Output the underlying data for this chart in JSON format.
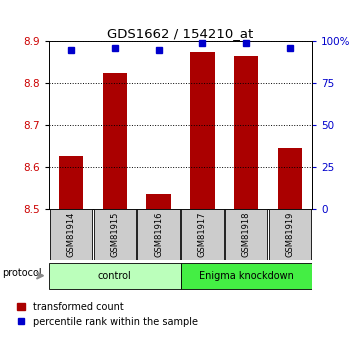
{
  "title": "GDS1662 / 154210_at",
  "samples": [
    "GSM81914",
    "GSM81915",
    "GSM81916",
    "GSM81917",
    "GSM81918",
    "GSM81919"
  ],
  "bar_values": [
    8.625,
    8.825,
    8.535,
    8.875,
    8.865,
    8.645
  ],
  "percentile_values": [
    95,
    96,
    95,
    99,
    99,
    96
  ],
  "ylim_left": [
    8.5,
    8.9
  ],
  "ylim_right": [
    0,
    100
  ],
  "yticks_left": [
    8.5,
    8.6,
    8.7,
    8.8,
    8.9
  ],
  "yticks_right": [
    0,
    25,
    50,
    75,
    100
  ],
  "ytick_labels_right": [
    "0",
    "25",
    "50",
    "75",
    "100%"
  ],
  "bar_color": "#aa0000",
  "percentile_color": "#0000cc",
  "grid_color": "#000000",
  "groups": [
    {
      "label": "control",
      "start": 0,
      "end": 3,
      "color": "#bbffbb"
    },
    {
      "label": "Enigma knockdown",
      "start": 3,
      "end": 6,
      "color": "#44ee44"
    }
  ],
  "protocol_label": "protocol",
  "legend_bar_label": "transformed count",
  "legend_pct_label": "percentile rank within the sample",
  "tick_label_color_left": "#cc0000",
  "tick_label_color_right": "#0000cc",
  "bar_bottom": 8.5,
  "sample_box_color": "#cccccc",
  "fig_width": 3.61,
  "fig_height": 3.45,
  "dpi": 100
}
